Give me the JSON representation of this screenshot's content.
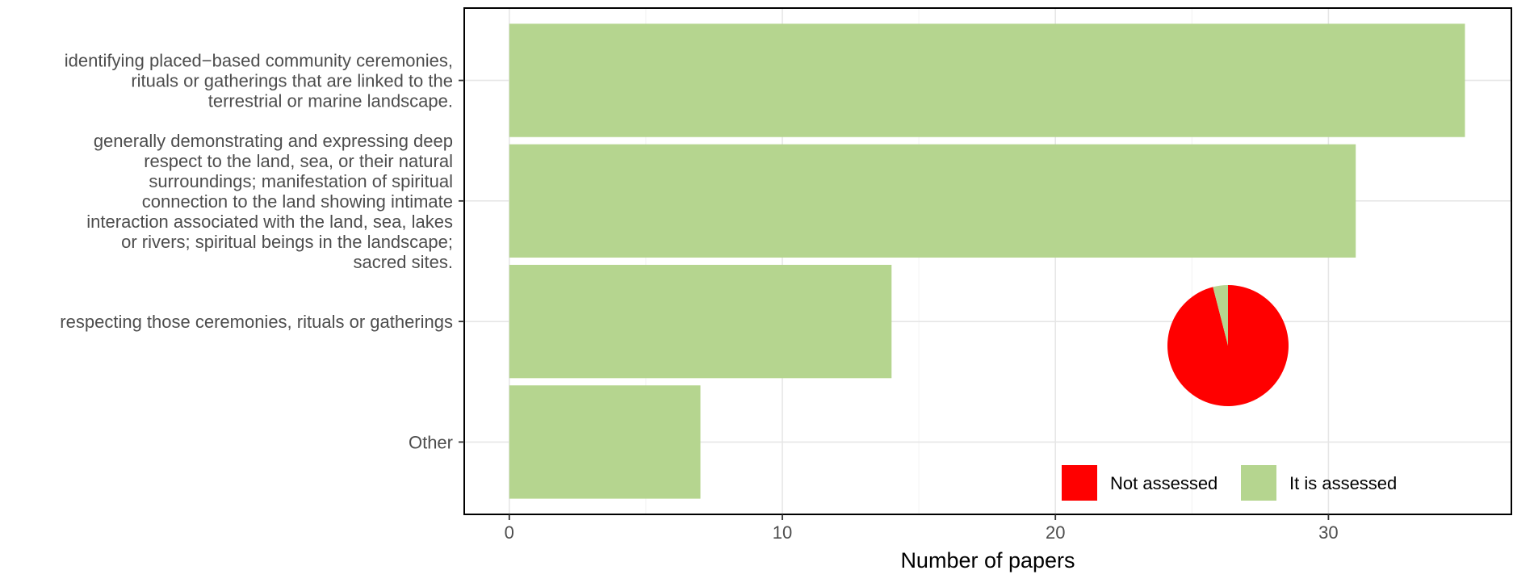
{
  "chart_data": [
    {
      "type": "bar",
      "orientation": "horizontal",
      "categories": [
        "identifying placed−based community ceremonies,\nrituals or gatherings that are linked to the\nterrestrial or marine landscape.",
        "generally demonstrating and expressing deep\nrespect to the land, sea, or their natural\nsurroundings; manifestation of spiritual\nconnection to the land showing intimate\ninteraction associated with the land, sea, lakes\nor rivers; spiritual beings in the landscape;\nsacred sites.",
        "respecting those ceremonies, rituals or gatherings",
        "Other"
      ],
      "values": [
        35,
        31,
        14,
        7
      ],
      "xlabel": "Number of papers",
      "ylabel": "",
      "xlim": [
        -1.65,
        36.7
      ],
      "xticks": [
        0,
        10,
        20,
        30
      ],
      "grid": true,
      "bar_color": "#b5d58f"
    },
    {
      "type": "pie",
      "categories": [
        "Not assessed",
        "It is assessed"
      ],
      "values": [
        96,
        4
      ],
      "colors": [
        "#ff0000",
        "#b5d58f"
      ],
      "legend_position": "bottom-right"
    }
  ]
}
